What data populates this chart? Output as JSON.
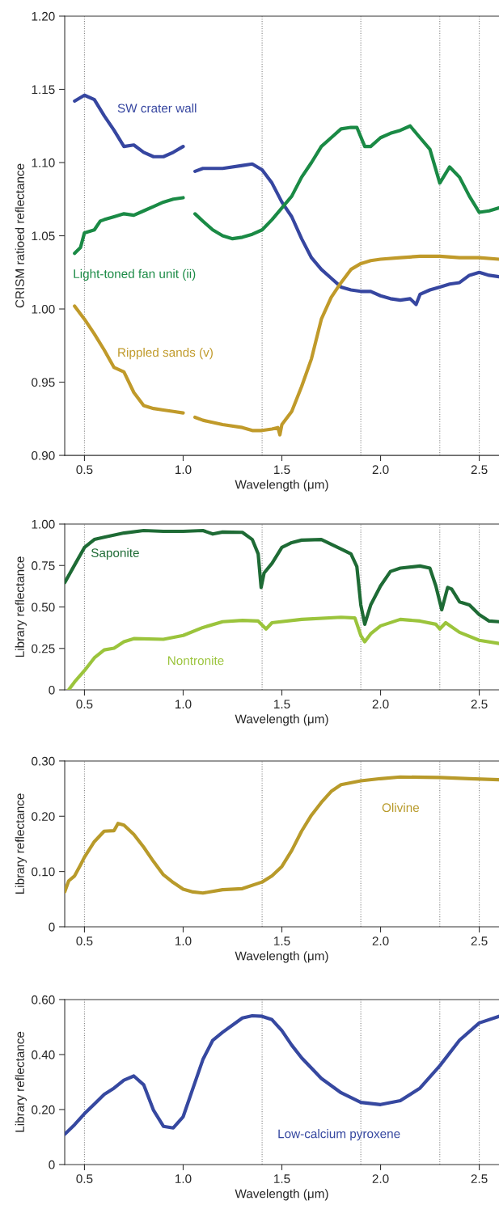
{
  "chart_data": [
    {
      "type": "line",
      "xlabel": "Wavelength (μm)",
      "ylabel": "CRISM ratioed reflectance",
      "xlim": [
        0.4,
        2.6
      ],
      "xticks": [
        {
          "value": 0.5,
          "label": "0.5"
        },
        {
          "value": 1.0,
          "label": "1.0"
        },
        {
          "value": 1.5,
          "label": "1.5"
        },
        {
          "value": 2.0,
          "label": "2.0"
        },
        {
          "value": 2.5,
          "label": "2.5"
        }
      ],
      "ylim": [
        0.9,
        1.2
      ],
      "yticks": [
        {
          "value": 0.9,
          "label": "0.90"
        },
        0.95,
        {
          "value": 1.0,
          "label": "1.00"
        },
        1.05,
        {
          "value": 1.1,
          "label": "1.10"
        },
        1.15,
        {
          "value": 1.2,
          "label": "1.20"
        }
      ],
      "grid": false,
      "legend": false,
      "line_style": "solid",
      "marker": "none",
      "ref_lines": [
        {
          "axis": "x",
          "value": 0.5,
          "color": "#888888",
          "line_style": "dotted"
        },
        {
          "axis": "x",
          "value": 1.4,
          "color": "#888888",
          "line_style": "dotted"
        },
        {
          "axis": "x",
          "value": 1.9,
          "color": "#888888",
          "line_style": "dotted"
        },
        {
          "axis": "x",
          "value": 2.3,
          "color": "#888888",
          "line_style": "dotted"
        },
        {
          "axis": "x",
          "value": 2.5,
          "color": "#888888",
          "line_style": "dotted"
        }
      ],
      "series": [
        {
          "name": "SW crater wall",
          "color": "#3646a0",
          "x": [
            0.45,
            0.5,
            0.55,
            0.6,
            0.65,
            0.7,
            0.75,
            0.8,
            0.85,
            0.9,
            0.95,
            1.0,
            1.03,
            1.06,
            1.1,
            1.2,
            1.3,
            1.35,
            1.4,
            1.45,
            1.5,
            1.55,
            1.6,
            1.65,
            1.7,
            1.75,
            1.8,
            1.85,
            1.9,
            1.95,
            2.0,
            2.05,
            2.1,
            2.15,
            2.18,
            2.2,
            2.25,
            2.3,
            2.35,
            2.4,
            2.45,
            2.5,
            2.55,
            2.6
          ],
          "values": [
            1.142,
            1.146,
            1.143,
            1.132,
            1.122,
            1.111,
            1.112,
            1.107,
            1.104,
            1.104,
            1.107,
            1.111,
            null,
            1.094,
            1.096,
            1.096,
            1.098,
            1.099,
            1.095,
            1.086,
            1.073,
            1.063,
            1.048,
            1.035,
            1.027,
            1.021,
            1.015,
            1.013,
            1.012,
            1.012,
            1.009,
            1.007,
            1.006,
            1.007,
            1.003,
            1.01,
            1.013,
            1.015,
            1.017,
            1.018,
            1.023,
            1.025,
            1.023,
            1.022
          ]
        },
        {
          "name": "Light-toned fan unit (ii)",
          "color": "#1a8a45",
          "x": [
            0.45,
            0.48,
            0.5,
            0.55,
            0.58,
            0.6,
            0.65,
            0.7,
            0.75,
            0.8,
            0.85,
            0.9,
            0.95,
            1.0,
            1.03,
            1.06,
            1.1,
            1.15,
            1.2,
            1.25,
            1.3,
            1.35,
            1.4,
            1.45,
            1.5,
            1.55,
            1.6,
            1.65,
            1.7,
            1.75,
            1.8,
            1.85,
            1.88,
            1.92,
            1.95,
            2.0,
            2.05,
            2.1,
            2.15,
            2.2,
            2.25,
            2.3,
            2.35,
            2.4,
            2.45,
            2.5,
            2.55,
            2.6
          ],
          "values": [
            1.038,
            1.042,
            1.052,
            1.054,
            1.06,
            1.061,
            1.063,
            1.065,
            1.064,
            1.067,
            1.07,
            1.073,
            1.075,
            1.076,
            null,
            1.065,
            1.06,
            1.054,
            1.05,
            1.048,
            1.049,
            1.051,
            1.054,
            1.061,
            1.069,
            1.077,
            1.09,
            1.1,
            1.111,
            1.117,
            1.123,
            1.124,
            1.124,
            1.111,
            1.111,
            1.117,
            1.12,
            1.122,
            1.125,
            1.117,
            1.109,
            1.086,
            1.097,
            1.09,
            1.077,
            1.066,
            1.067,
            1.069
          ]
        },
        {
          "name": "Rippled sands (v)",
          "color": "#c09a2a",
          "x": [
            0.45,
            0.5,
            0.55,
            0.6,
            0.65,
            0.7,
            0.75,
            0.8,
            0.85,
            0.9,
            0.95,
            1.0,
            1.03,
            1.06,
            1.1,
            1.2,
            1.3,
            1.35,
            1.4,
            1.45,
            1.48,
            1.49,
            1.5,
            1.55,
            1.6,
            1.65,
            1.7,
            1.75,
            1.8,
            1.85,
            1.9,
            1.95,
            2.0,
            2.1,
            2.2,
            2.3,
            2.4,
            2.5,
            2.6
          ],
          "values": [
            1.002,
            0.993,
            0.983,
            0.972,
            0.96,
            0.957,
            0.943,
            0.934,
            0.932,
            0.931,
            0.93,
            0.929,
            null,
            0.926,
            0.924,
            0.921,
            0.919,
            0.917,
            0.917,
            0.918,
            0.919,
            0.914,
            0.921,
            0.93,
            0.947,
            0.966,
            0.993,
            1.008,
            1.018,
            1.027,
            1.031,
            1.033,
            1.034,
            1.035,
            1.036,
            1.036,
            1.035,
            1.035,
            1.034
          ]
        }
      ]
    },
    {
      "type": "line",
      "xlabel": "Wavelength (μm)",
      "ylabel": "Library reflectance",
      "xlim": [
        0.4,
        2.6
      ],
      "xticks": [
        {
          "value": 0.5,
          "label": "0.5"
        },
        {
          "value": 1.0,
          "label": "1.0"
        },
        {
          "value": 1.5,
          "label": "1.5"
        },
        {
          "value": 2.0,
          "label": "2.0"
        },
        {
          "value": 2.5,
          "label": "2.5"
        }
      ],
      "ylim": [
        0,
        1.0
      ],
      "yticks": [
        0,
        0.25,
        {
          "value": 0.5,
          "label": "0.50"
        },
        0.75,
        {
          "value": 1.0,
          "label": "1.00"
        }
      ],
      "grid": false,
      "legend": false,
      "line_style": "solid",
      "marker": "none",
      "ref_lines": [
        {
          "axis": "x",
          "value": 0.5,
          "color": "#888888",
          "line_style": "dotted"
        },
        {
          "axis": "x",
          "value": 1.4,
          "color": "#888888",
          "line_style": "dotted"
        },
        {
          "axis": "x",
          "value": 1.9,
          "color": "#888888",
          "line_style": "dotted"
        },
        {
          "axis": "x",
          "value": 2.3,
          "color": "#888888",
          "line_style": "dotted"
        },
        {
          "axis": "x",
          "value": 2.5,
          "color": "#888888",
          "line_style": "dotted"
        }
      ],
      "series": [
        {
          "name": "Saponite",
          "color": "#1e6b35",
          "x": [
            0.4,
            0.45,
            0.5,
            0.55,
            0.6,
            0.7,
            0.8,
            0.9,
            1.0,
            1.1,
            1.15,
            1.2,
            1.3,
            1.35,
            1.38,
            1.395,
            1.41,
            1.45,
            1.5,
            1.55,
            1.6,
            1.7,
            1.8,
            1.85,
            1.88,
            1.9,
            1.92,
            1.95,
            2.0,
            2.05,
            2.1,
            2.2,
            2.25,
            2.28,
            2.31,
            2.34,
            2.36,
            2.4,
            2.45,
            2.5,
            2.55,
            2.6
          ],
          "values": [
            0.647,
            0.753,
            0.859,
            0.907,
            0.921,
            0.946,
            0.961,
            0.956,
            0.956,
            0.961,
            0.94,
            0.952,
            0.95,
            0.907,
            0.82,
            0.618,
            0.705,
            0.763,
            0.859,
            0.888,
            0.903,
            0.907,
            0.849,
            0.82,
            0.743,
            0.512,
            0.396,
            0.512,
            0.627,
            0.714,
            0.734,
            0.747,
            0.734,
            0.627,
            0.483,
            0.618,
            0.608,
            0.531,
            0.512,
            0.454,
            0.415,
            0.411
          ]
        },
        {
          "name": "Nontronite",
          "color": "#9bc43c",
          "x": [
            0.42,
            0.45,
            0.5,
            0.55,
            0.6,
            0.65,
            0.7,
            0.75,
            0.9,
            1.0,
            1.1,
            1.2,
            1.3,
            1.38,
            1.42,
            1.45,
            1.6,
            1.8,
            1.87,
            1.9,
            1.92,
            1.95,
            2.0,
            2.1,
            2.2,
            2.28,
            2.3,
            2.33,
            2.4,
            2.5,
            2.6
          ],
          "values": [
            0.0,
            0.048,
            0.116,
            0.193,
            0.241,
            0.251,
            0.29,
            0.309,
            0.305,
            0.328,
            0.376,
            0.411,
            0.419,
            0.415,
            0.367,
            0.405,
            0.425,
            0.438,
            0.434,
            0.328,
            0.29,
            0.338,
            0.386,
            0.425,
            0.415,
            0.396,
            0.367,
            0.405,
            0.347,
            0.299,
            0.28
          ]
        }
      ]
    },
    {
      "type": "line",
      "xlabel": "Wavelength (μm)",
      "ylabel": "Library reflectance",
      "xlim": [
        0.4,
        2.6
      ],
      "xticks": [
        {
          "value": 0.5,
          "label": "0.5"
        },
        {
          "value": 1.0,
          "label": "1.0"
        },
        {
          "value": 1.5,
          "label": "1.5"
        },
        {
          "value": 2.0,
          "label": "2.0"
        },
        {
          "value": 2.5,
          "label": "2.5"
        }
      ],
      "ylim": [
        0,
        0.3
      ],
      "yticks": [
        0,
        {
          "value": 0.1,
          "label": "0.10"
        },
        {
          "value": 0.2,
          "label": "0.20"
        },
        {
          "value": 0.3,
          "label": "0.30"
        }
      ],
      "grid": false,
      "legend": false,
      "line_style": "solid",
      "marker": "none",
      "ref_lines": [
        {
          "axis": "x",
          "value": 0.5,
          "color": "#888888",
          "line_style": "dotted"
        },
        {
          "axis": "x",
          "value": 1.4,
          "color": "#888888",
          "line_style": "dotted"
        },
        {
          "axis": "x",
          "value": 1.9,
          "color": "#888888",
          "line_style": "dotted"
        },
        {
          "axis": "x",
          "value": 2.3,
          "color": "#888888",
          "line_style": "dotted"
        },
        {
          "axis": "x",
          "value": 2.5,
          "color": "#888888",
          "line_style": "dotted"
        }
      ],
      "series": [
        {
          "name": "Olivine",
          "color": "#b89a2a",
          "x": [
            0.4,
            0.42,
            0.45,
            0.48,
            0.5,
            0.55,
            0.6,
            0.65,
            0.67,
            0.7,
            0.75,
            0.8,
            0.85,
            0.9,
            0.95,
            1.0,
            1.05,
            1.1,
            1.2,
            1.3,
            1.4,
            1.45,
            1.5,
            1.55,
            1.6,
            1.65,
            1.7,
            1.75,
            1.8,
            1.9,
            2.0,
            2.1,
            2.3,
            2.45,
            2.6
          ],
          "values": [
            0.063,
            0.083,
            0.092,
            0.112,
            0.126,
            0.154,
            0.173,
            0.174,
            0.187,
            0.184,
            0.167,
            0.144,
            0.118,
            0.094,
            0.08,
            0.068,
            0.063,
            0.061,
            0.067,
            0.069,
            0.081,
            0.092,
            0.109,
            0.138,
            0.173,
            0.202,
            0.225,
            0.245,
            0.257,
            0.264,
            0.268,
            0.271,
            0.27,
            0.268,
            0.266
          ]
        }
      ]
    },
    {
      "type": "line",
      "xlabel": "Wavelength (μm)",
      "ylabel": "Library reflectance",
      "xlim": [
        0.4,
        2.6
      ],
      "xticks": [
        {
          "value": 0.5,
          "label": "0.5"
        },
        {
          "value": 1.0,
          "label": "1.0"
        },
        {
          "value": 1.5,
          "label": "1.5"
        },
        {
          "value": 2.0,
          "label": "2.0"
        },
        {
          "value": 2.5,
          "label": "2.5"
        }
      ],
      "ylim": [
        0,
        0.6
      ],
      "yticks": [
        0,
        {
          "value": 0.2,
          "label": "0.20"
        },
        {
          "value": 0.4,
          "label": "0.40"
        },
        {
          "value": 0.6,
          "label": "0.60"
        }
      ],
      "grid": false,
      "legend": false,
      "line_style": "solid",
      "marker": "none",
      "ref_lines": [
        {
          "axis": "x",
          "value": 0.5,
          "color": "#888888",
          "line_style": "dotted"
        },
        {
          "axis": "x",
          "value": 1.4,
          "color": "#888888",
          "line_style": "dotted"
        },
        {
          "axis": "x",
          "value": 1.9,
          "color": "#888888",
          "line_style": "dotted"
        },
        {
          "axis": "x",
          "value": 2.3,
          "color": "#888888",
          "line_style": "dotted"
        },
        {
          "axis": "x",
          "value": 2.5,
          "color": "#888888",
          "line_style": "dotted"
        }
      ],
      "series": [
        {
          "name": "Low-calcium pyroxene",
          "color": "#3648a0",
          "x": [
            0.4,
            0.45,
            0.5,
            0.55,
            0.6,
            0.65,
            0.7,
            0.75,
            0.8,
            0.85,
            0.9,
            0.95,
            1.0,
            1.05,
            1.1,
            1.15,
            1.2,
            1.3,
            1.35,
            1.4,
            1.45,
            1.5,
            1.55,
            1.6,
            1.7,
            1.8,
            1.9,
            2.0,
            2.1,
            2.2,
            2.3,
            2.4,
            2.5,
            2.6
          ],
          "values": [
            0.11,
            0.145,
            0.185,
            0.22,
            0.255,
            0.278,
            0.307,
            0.322,
            0.29,
            0.197,
            0.139,
            0.133,
            0.174,
            0.278,
            0.382,
            0.452,
            0.481,
            0.533,
            0.541,
            0.539,
            0.527,
            0.487,
            0.434,
            0.388,
            0.313,
            0.261,
            0.226,
            0.218,
            0.232,
            0.278,
            0.359,
            0.452,
            0.515,
            0.539
          ]
        }
      ]
    }
  ]
}
